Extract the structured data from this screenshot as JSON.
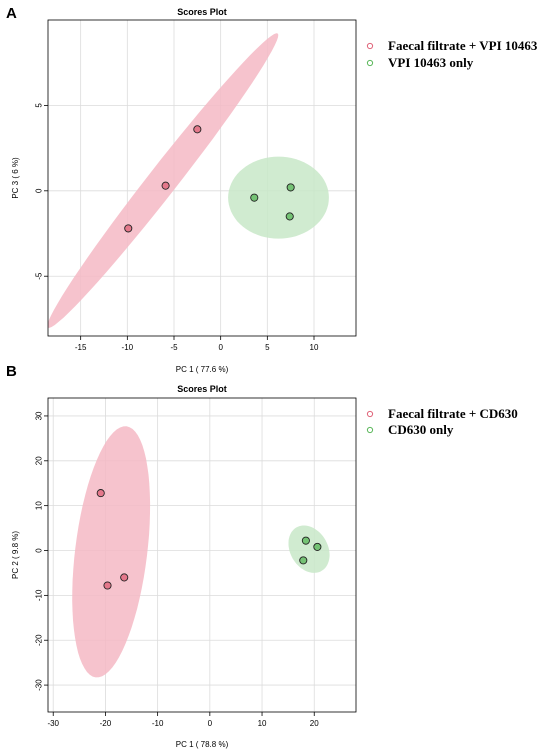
{
  "chart_data": [
    {
      "type": "scatter",
      "panel_label": "A",
      "title": "Scores Plot",
      "xlabel": "PC 1 ( 77.6 %)",
      "ylabel": "PC 3 ( 6 %)",
      "xlim": [
        -18.5,
        14.5
      ],
      "ylim": [
        -8.5,
        10
      ],
      "xticks": [
        -15,
        -10,
        -5,
        0,
        5,
        10
      ],
      "yticks": [
        -5,
        0,
        5
      ],
      "grid": true,
      "legend_position": "right",
      "series": [
        {
          "name": "Faecal filtrate + VPI 10463",
          "color": "#e0657a",
          "ellipse_color": "#f5b8c4",
          "points": [
            {
              "x": -2.5,
              "y": 3.6
            },
            {
              "x": -5.9,
              "y": 0.3
            },
            {
              "x": -9.9,
              "y": -2.2
            }
          ],
          "ellipse": {
            "cx": -6.2,
            "cy": 0.6,
            "rx": 20.0,
            "ry": 0.85,
            "angle": 52
          }
        },
        {
          "name": "VPI 10463 only",
          "color": "#5cb85c",
          "ellipse_color": "#c8e8c8",
          "points": [
            {
              "x": 3.6,
              "y": -0.4
            },
            {
              "x": 7.5,
              "y": 0.2
            },
            {
              "x": 7.4,
              "y": -1.5
            }
          ],
          "ellipse": {
            "cx": 6.2,
            "cy": -0.4,
            "rx": 5.4,
            "ry": 2.4,
            "angle": 0
          }
        }
      ]
    },
    {
      "type": "scatter",
      "panel_label": "B",
      "title": "Scores Plot",
      "xlabel": "PC 1 ( 78.8 %)",
      "ylabel": "PC 2 ( 9.8 %)",
      "xlim": [
        -31,
        28
      ],
      "ylim": [
        -36,
        34
      ],
      "xticks": [
        -30,
        -20,
        -10,
        0,
        10,
        20
      ],
      "yticks": [
        -30,
        -20,
        -10,
        0,
        10,
        20,
        30
      ],
      "grid": true,
      "legend_position": "right",
      "series": [
        {
          "name": "Faecal filtrate + CD630",
          "color": "#e0657a",
          "ellipse_color": "#f5b8c4",
          "points": [
            {
              "x": -20.9,
              "y": 12.8
            },
            {
              "x": -19.6,
              "y": -7.8
            },
            {
              "x": -16.4,
              "y": -6.0
            }
          ],
          "ellipse": {
            "cx": -18.9,
            "cy": -0.3,
            "rx": 6.9,
            "ry": 28.2,
            "angle": -7
          }
        },
        {
          "name": "CD630 only",
          "color": "#5cb85c",
          "ellipse_color": "#c8e8c8",
          "points": [
            {
              "x": 18.4,
              "y": 2.2
            },
            {
              "x": 20.6,
              "y": 0.8
            },
            {
              "x": 17.9,
              "y": -2.2
            }
          ],
          "ellipse": {
            "cx": 19.0,
            "cy": 0.3,
            "rx": 3.6,
            "ry": 5.6,
            "angle": 30
          }
        }
      ]
    }
  ]
}
